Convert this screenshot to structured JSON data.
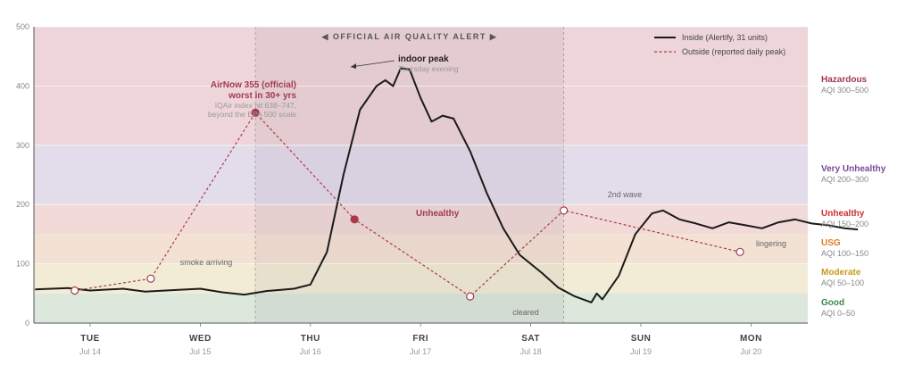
{
  "chart_data": {
    "type": "line",
    "ylim": [
      0,
      500
    ],
    "y_ticks": [
      "0",
      "100",
      "200",
      "300",
      "400",
      "500"
    ],
    "days": [
      {
        "day": "TUE",
        "date": "Jul 14"
      },
      {
        "day": "WED",
        "date": "Jul 15"
      },
      {
        "day": "THU",
        "date": "Jul 16"
      },
      {
        "day": "FRI",
        "date": "Jul 17"
      },
      {
        "day": "SAT",
        "date": "Jul 18"
      },
      {
        "day": "SUN",
        "date": "Jul 19"
      },
      {
        "day": "MON",
        "date": "Jul 20"
      }
    ],
    "alert_label": "◀ OFFICIAL AIR QUALITY ALERT ▶",
    "alert_span_days": [
      1.5,
      4.3
    ],
    "bands": [
      {
        "name": "Hazardous",
        "range": "AQI 300–500",
        "from": 300,
        "to": 500,
        "color": "#a23a4e",
        "fill": "#eed5da"
      },
      {
        "name": "Very Unhealthy",
        "range": "AQI 200–300",
        "from": 200,
        "to": 300,
        "color": "#7a4a9a",
        "fill": "#e3dcea"
      },
      {
        "name": "Unhealthy",
        "range": "AQI 150–200",
        "from": 150,
        "to": 200,
        "color": "#cc3333",
        "fill": "#f1dad8"
      },
      {
        "name": "USG",
        "range": "AQI 100–150",
        "from": 100,
        "to": 150,
        "color": "#e07a20",
        "fill": "#f3e2d3"
      },
      {
        "name": "Moderate",
        "range": "AQI 50–100",
        "from": 50,
        "to": 100,
        "color": "#c89a1a",
        "fill": "#f2ecd6"
      },
      {
        "name": "Good",
        "range": "AQI 0–50",
        "from": 0,
        "to": 50,
        "color": "#3a8a4a",
        "fill": "#dde8dc"
      }
    ],
    "series": [
      {
        "name": "Inside (Alertify, 31 units)",
        "style": "solid",
        "color": "#1a1a1a",
        "points": [
          [
            -0.5,
            57
          ],
          [
            -0.2,
            59
          ],
          [
            0.0,
            55
          ],
          [
            0.3,
            58
          ],
          [
            0.5,
            53
          ],
          [
            0.8,
            56
          ],
          [
            1.0,
            58
          ],
          [
            1.2,
            52
          ],
          [
            1.4,
            48
          ],
          [
            1.6,
            54
          ],
          [
            1.85,
            58
          ],
          [
            2.0,
            65
          ],
          [
            2.15,
            120
          ],
          [
            2.3,
            250
          ],
          [
            2.45,
            360
          ],
          [
            2.6,
            400
          ],
          [
            2.68,
            410
          ],
          [
            2.75,
            400
          ],
          [
            2.82,
            430
          ],
          [
            2.9,
            428
          ],
          [
            3.0,
            380
          ],
          [
            3.1,
            340
          ],
          [
            3.2,
            350
          ],
          [
            3.3,
            345
          ],
          [
            3.45,
            290
          ],
          [
            3.6,
            220
          ],
          [
            3.75,
            160
          ],
          [
            3.9,
            115
          ],
          [
            4.1,
            85
          ],
          [
            4.25,
            60
          ],
          [
            4.4,
            45
          ],
          [
            4.55,
            35
          ],
          [
            4.6,
            50
          ],
          [
            4.65,
            40
          ],
          [
            4.8,
            80
          ],
          [
            4.95,
            150
          ],
          [
            5.1,
            185
          ],
          [
            5.2,
            190
          ],
          [
            5.35,
            175
          ],
          [
            5.5,
            168
          ],
          [
            5.65,
            160
          ],
          [
            5.8,
            170
          ],
          [
            5.95,
            165
          ],
          [
            6.1,
            160
          ],
          [
            6.25,
            170
          ],
          [
            6.4,
            175
          ],
          [
            6.55,
            168
          ],
          [
            6.7,
            165
          ],
          [
            6.85,
            160
          ],
          [
            6.97,
            158
          ]
        ]
      },
      {
        "name": "Outside (reported daily peak)",
        "style": "dashed",
        "color": "#a83a4a",
        "points": [
          [
            -0.14,
            55
          ],
          [
            0.55,
            75
          ],
          [
            1.5,
            355
          ],
          [
            2.4,
            175
          ],
          [
            3.45,
            45
          ],
          [
            4.3,
            190
          ],
          [
            5.9,
            120
          ]
        ]
      }
    ],
    "markers": [
      {
        "x": -0.14,
        "y": 55,
        "filled": false
      },
      {
        "x": 0.55,
        "y": 75,
        "filled": false
      },
      {
        "x": 1.5,
        "y": 355,
        "filled": true
      },
      {
        "x": 2.4,
        "y": 175,
        "filled": true
      },
      {
        "x": 3.45,
        "y": 45,
        "filled": false
      },
      {
        "x": 4.3,
        "y": 190,
        "filled": false
      },
      {
        "x": 5.9,
        "y": 120,
        "filled": false
      }
    ],
    "annotations": [
      {
        "id": "airnow-1",
        "text": "AirNow 355 (official)"
      },
      {
        "id": "airnow-2",
        "text": "worst in 30+ yrs"
      },
      {
        "id": "iqair-1",
        "text": "IQAir index hit 638–747,"
      },
      {
        "id": "iqair-2",
        "text": "beyond the EPA 500 scale"
      },
      {
        "id": "indoor-peak",
        "text": "indoor peak"
      },
      {
        "id": "thursday-evening",
        "text": "Thursday evening"
      },
      {
        "id": "unhealthy",
        "text": "Unhealthy"
      },
      {
        "id": "smoke-arriving",
        "text": "smoke arriving"
      },
      {
        "id": "cleared",
        "text": "cleared"
      },
      {
        "id": "second-wave",
        "text": "2nd wave"
      },
      {
        "id": "lingering",
        "text": "lingering"
      }
    ]
  }
}
